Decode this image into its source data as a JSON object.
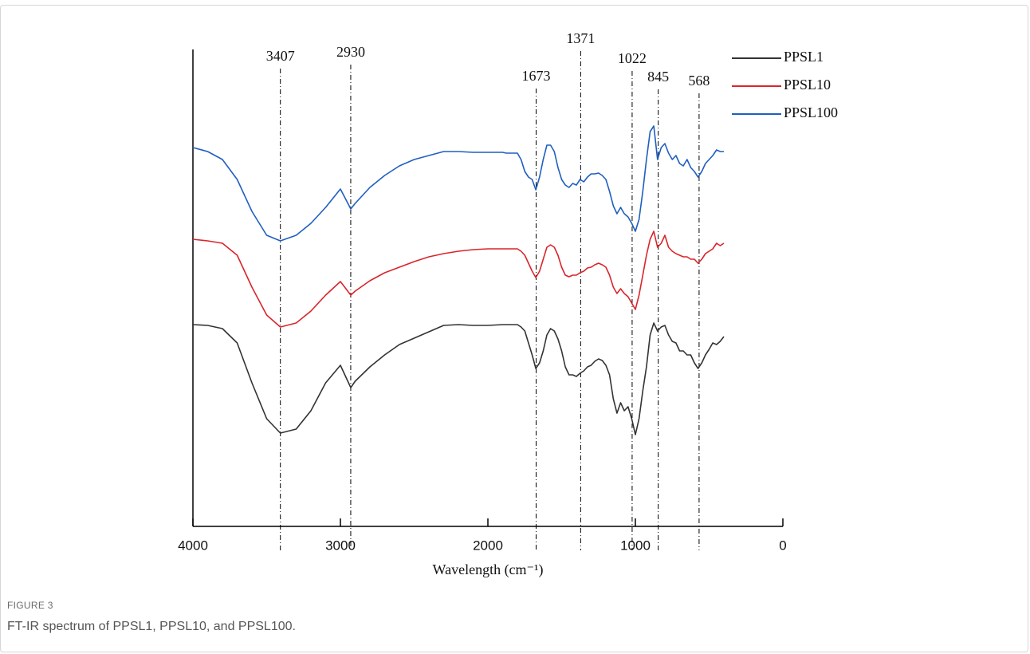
{
  "chart_data": {
    "type": "line",
    "xlabel": "Wavelength (cm⁻¹)",
    "figure_label": "FIGURE 3",
    "caption": "FT-IR spectrum of PPSL1, PPSL10, and PPSL100.",
    "xlim": [
      4000,
      0
    ],
    "xticks": [
      4000,
      3000,
      2000,
      1000,
      0
    ],
    "ylim": [
      0,
      598
    ],
    "legend": "upper right",
    "peaks": [
      3407,
      2930,
      1673,
      1371,
      1022,
      845,
      568
    ],
    "x": [
      4000,
      3900,
      3800,
      3700,
      3600,
      3500,
      3407,
      3300,
      3200,
      3100,
      3000,
      2930,
      2900,
      2800,
      2700,
      2600,
      2500,
      2400,
      2300,
      2200,
      2100,
      2000,
      1900,
      1875,
      1850,
      1825,
      1800,
      1775,
      1750,
      1725,
      1700,
      1675,
      1650,
      1625,
      1600,
      1575,
      1550,
      1525,
      1500,
      1475,
      1450,
      1425,
      1400,
      1375,
      1350,
      1325,
      1300,
      1275,
      1250,
      1225,
      1200,
      1175,
      1150,
      1125,
      1100,
      1075,
      1050,
      1025,
      1000,
      975,
      950,
      925,
      900,
      875,
      850,
      825,
      800,
      775,
      750,
      725,
      700,
      675,
      650,
      625,
      600,
      575,
      550,
      525,
      500,
      475,
      450,
      425,
      400
    ],
    "series": [
      {
        "name": "PPSL1",
        "color": "#333333",
        "values": [
          253,
          252,
          248,
          230,
          180,
          135,
          117,
          122,
          145,
          180,
          202,
          174,
          182,
          200,
          215,
          228,
          236,
          244,
          252,
          253,
          252,
          252,
          253,
          253,
          253,
          253,
          253,
          250,
          245,
          230,
          215,
          198,
          205,
          220,
          240,
          248,
          245,
          235,
          220,
          200,
          190,
          190,
          188,
          192,
          195,
          200,
          202,
          207,
          210,
          208,
          202,
          190,
          160,
          142,
          155,
          145,
          150,
          135,
          115,
          135,
          170,
          200,
          240,
          255,
          245,
          250,
          252,
          240,
          232,
          230,
          220,
          220,
          215,
          215,
          205,
          198,
          205,
          215,
          222,
          230,
          228,
          232,
          238
        ]
      },
      {
        "name": "PPSL10",
        "color": "#d9252b",
        "values": [
          360,
          358,
          355,
          340,
          300,
          265,
          250,
          255,
          270,
          290,
          307,
          290,
          295,
          308,
          318,
          325,
          332,
          338,
          342,
          345,
          347,
          348,
          348,
          348,
          348,
          348,
          348,
          345,
          340,
          330,
          320,
          312,
          320,
          335,
          350,
          353,
          350,
          340,
          325,
          315,
          313,
          315,
          315,
          318,
          320,
          324,
          325,
          328,
          330,
          328,
          325,
          315,
          300,
          292,
          298,
          292,
          288,
          280,
          272,
          290,
          315,
          340,
          360,
          370,
          350,
          355,
          365,
          350,
          345,
          342,
          340,
          338,
          338,
          335,
          335,
          330,
          335,
          342,
          345,
          348,
          355,
          352,
          355
        ]
      },
      {
        "name": "PPSL100",
        "color": "#1f5fbf",
        "values": [
          475,
          470,
          460,
          435,
          395,
          365,
          358,
          365,
          380,
          400,
          423,
          398,
          405,
          425,
          440,
          452,
          460,
          465,
          470,
          470,
          469,
          469,
          469,
          468,
          468,
          468,
          468,
          460,
          445,
          438,
          435,
          422,
          438,
          460,
          478,
          478,
          470,
          450,
          435,
          428,
          425,
          430,
          428,
          435,
          432,
          438,
          442,
          442,
          443,
          440,
          435,
          420,
          402,
          392,
          400,
          392,
          388,
          380,
          370,
          385,
          420,
          460,
          495,
          502,
          460,
          475,
          480,
          468,
          460,
          465,
          455,
          452,
          460,
          450,
          445,
          438,
          445,
          455,
          460,
          465,
          472,
          470,
          470
        ]
      }
    ]
  }
}
